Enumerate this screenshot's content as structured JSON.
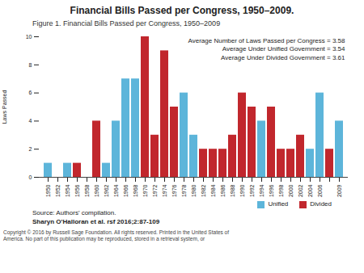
{
  "chart_data": {
    "type": "bar",
    "title": "Financial Bills Passed per Congress, 1950–2009.",
    "subtitle": "Figure 1. Financial Bills Passed per Congress, 1950–2009",
    "y_label": "Laws Passed",
    "annotations": [
      "Average Number of Laws Passed per Congress = 3.58",
      "Average Under Unified Government = 3.54",
      "Average Under Divided Government = 3.61"
    ],
    "categories": [
      "1950",
      "1952",
      "1954",
      "1956",
      "1958",
      "1960",
      "1962",
      "1964",
      "1966",
      "1968",
      "1970",
      "1972",
      "1974",
      "1976",
      "1978",
      "1980",
      "1982",
      "1984",
      "1986",
      "1988",
      "1990",
      "1992",
      "1994",
      "1996",
      "1998",
      "2000",
      "2002",
      "2004",
      "2006",
      null,
      "2009"
    ],
    "series": [
      {
        "name": "Unified",
        "color": "#5db5da",
        "values": [
          1,
          null,
          1,
          null,
          null,
          null,
          1,
          4,
          7,
          7,
          null,
          null,
          null,
          null,
          6,
          3,
          null,
          null,
          null,
          null,
          null,
          null,
          4,
          null,
          null,
          null,
          null,
          2,
          6,
          null,
          4
        ]
      },
      {
        "name": "Divided",
        "color": "#c1272d",
        "values": [
          null,
          null,
          null,
          1,
          null,
          4,
          null,
          null,
          null,
          null,
          10,
          3,
          9,
          5,
          null,
          null,
          2,
          2,
          2,
          3,
          6,
          5,
          null,
          5,
          2,
          2,
          3,
          null,
          null,
          2,
          null
        ]
      }
    ],
    "ylim": [
      0,
      10
    ],
    "yticks": [
      0,
      2,
      4,
      6,
      8,
      10
    ],
    "legend": "bottom-right",
    "source": "Source: Authors' compilation.",
    "citation": "Sharyn O'Halloran et al. rsf 2016;2:87-109",
    "copyright": "Copyright © 2016 by Russell Sage Foundation. All rights reserved. Printed in the United States of America. No part of this publication may be reproduced, stored in a retrieval system, or"
  }
}
